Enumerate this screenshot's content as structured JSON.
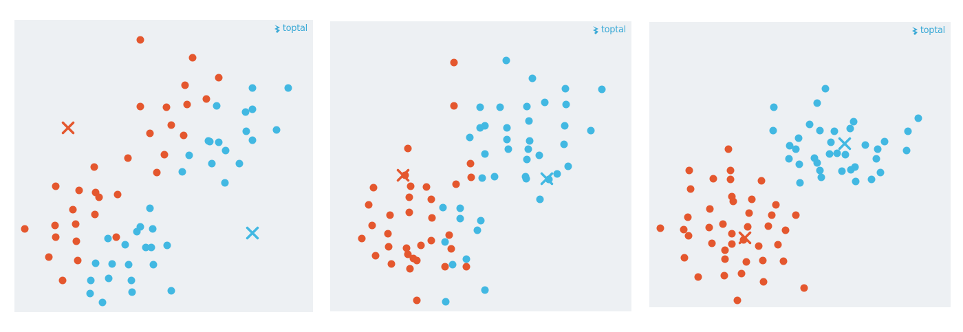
{
  "logo_text": "toptal",
  "colors": {
    "orange": "#e4572e",
    "blue": "#42b8e2",
    "panel_bg": "#edf0f3"
  },
  "chart_data": [
    {
      "type": "scatter",
      "title": "",
      "xlim": [
        0,
        434
      ],
      "ylim": [
        0,
        425
      ],
      "axes_visible": false,
      "grid": false,
      "series": [
        {
          "color": "orange",
          "points": [
            [
              183,
              396
            ],
            [
              259,
              370
            ],
            [
              297,
              341
            ],
            [
              248,
              330
            ],
            [
              183,
              299
            ],
            [
              221,
              298
            ],
            [
              251,
              302
            ],
            [
              279,
              310
            ],
            [
              228,
              272
            ],
            [
              197,
              260
            ],
            [
              246,
              257
            ],
            [
              218,
              229
            ],
            [
              116,
              211
            ],
            [
              165,
              224
            ],
            [
              207,
              203
            ],
            [
              118,
              174
            ],
            [
              60,
              183
            ],
            [
              94,
              177
            ],
            [
              123,
              167
            ],
            [
              150,
              171
            ],
            [
              85,
              149
            ],
            [
              59,
              126
            ],
            [
              117,
              142
            ],
            [
              89,
              128
            ],
            [
              15,
              121
            ],
            [
              148,
              109
            ],
            [
              90,
              103
            ],
            [
              60,
              109
            ],
            [
              50,
              80
            ],
            [
              92,
              75
            ],
            [
              70,
              46
            ]
          ]
        },
        {
          "color": "blue",
          "points": [
            [
              346,
              326
            ],
            [
              398,
              326
            ],
            [
              294,
              300
            ],
            [
              346,
              295
            ],
            [
              336,
              291
            ],
            [
              381,
              265
            ],
            [
              337,
              263
            ],
            [
              346,
              250
            ],
            [
              284,
              248
            ],
            [
              282,
              249
            ],
            [
              297,
              247
            ],
            [
              307,
              235
            ],
            [
              254,
              228
            ],
            [
              287,
              216
            ],
            [
              327,
              216
            ],
            [
              244,
              204
            ],
            [
              306,
              188
            ],
            [
              197,
              151
            ],
            [
              183,
              124
            ],
            [
              201,
              121
            ],
            [
              178,
              117
            ],
            [
              222,
              97
            ],
            [
              199,
              94
            ],
            [
              136,
              107
            ],
            [
              161,
              98
            ],
            [
              191,
              94
            ],
            [
              118,
              71
            ],
            [
              166,
              69
            ],
            [
              202,
              69
            ],
            [
              142,
              70
            ],
            [
              170,
              46
            ],
            [
              137,
              49
            ],
            [
              111,
              46
            ],
            [
              171,
              29
            ],
            [
              110,
              27
            ],
            [
              228,
              31
            ],
            [
              128,
              14
            ]
          ]
        }
      ],
      "centroids": [
        {
          "color": "orange",
          "x": 78,
          "y": 268
        },
        {
          "color": "blue",
          "x": 346,
          "y": 115
        }
      ]
    },
    {
      "type": "scatter",
      "title": "",
      "xlim": [
        0,
        438
      ],
      "ylim": [
        0,
        422
      ],
      "axes_visible": false,
      "grid": false,
      "series": [
        {
          "color": "orange",
          "points": [
            [
              180,
              362
            ],
            [
              180,
              299
            ],
            [
              113,
              237
            ],
            [
              204,
              215
            ],
            [
              205,
              195
            ],
            [
              109,
              198
            ],
            [
              140,
              181
            ],
            [
              183,
              185
            ],
            [
              63,
              180
            ],
            [
              56,
              155
            ],
            [
              117,
              182
            ],
            [
              115,
              166
            ],
            [
              147,
              163
            ],
            [
              148,
              136
            ],
            [
              115,
              144
            ],
            [
              87,
              140
            ],
            [
              61,
              125
            ],
            [
              84,
              113
            ],
            [
              147,
              103
            ],
            [
              173,
              111
            ],
            [
              46,
              106
            ],
            [
              85,
              94
            ],
            [
              111,
              92
            ],
            [
              132,
              96
            ],
            [
              176,
              91
            ],
            [
              66,
              81
            ],
            [
              113,
              83
            ],
            [
              121,
              77
            ],
            [
              126,
              74
            ],
            [
              89,
              69
            ],
            [
              116,
              62
            ],
            [
              167,
              65
            ],
            [
              198,
              65
            ],
            [
              126,
              16
            ]
          ]
        },
        {
          "color": "blue",
          "points": [
            [
              256,
              365
            ],
            [
              294,
              339
            ],
            [
              342,
              324
            ],
            [
              395,
              323
            ],
            [
              218,
              297
            ],
            [
              247,
              297
            ],
            [
              286,
              298
            ],
            [
              343,
              301
            ],
            [
              312,
              304
            ],
            [
              218,
              267
            ],
            [
              257,
              267
            ],
            [
              289,
              277
            ],
            [
              225,
              270
            ],
            [
              341,
              270
            ],
            [
              379,
              263
            ],
            [
              257,
              250
            ],
            [
              290,
              248
            ],
            [
              203,
              253
            ],
            [
              225,
              229
            ],
            [
              259,
              236
            ],
            [
              288,
              236
            ],
            [
              340,
              243
            ],
            [
              304,
              227
            ],
            [
              286,
              221
            ],
            [
              346,
              211
            ],
            [
              330,
              200
            ],
            [
              239,
              196
            ],
            [
              221,
              194
            ],
            [
              285,
              193
            ],
            [
              284,
              196
            ],
            [
              318,
              192
            ],
            [
              305,
              163
            ],
            [
              219,
              132
            ],
            [
              189,
              135
            ],
            [
              164,
              151
            ],
            [
              189,
              150
            ],
            [
              214,
              118
            ],
            [
              167,
              101
            ],
            [
              198,
              76
            ],
            [
              178,
              68
            ],
            [
              225,
              31
            ],
            [
              168,
              14
            ]
          ]
        }
      ],
      "centroids": [
        {
          "color": "orange",
          "x": 106,
          "y": 198
        },
        {
          "color": "blue",
          "x": 315,
          "y": 193
        }
      ]
    },
    {
      "type": "scatter",
      "title": "",
      "xlim": [
        0,
        438
      ],
      "ylim": [
        0,
        415
      ],
      "axes_visible": false,
      "grid": false,
      "series": [
        {
          "color": "orange",
          "points": [
            [
              128,
              10
            ],
            [
              225,
              28
            ],
            [
              71,
              44
            ],
            [
              109,
              46
            ],
            [
              134,
              49
            ],
            [
              166,
              37
            ],
            [
              165,
              68
            ],
            [
              195,
              67
            ],
            [
              51,
              72
            ],
            [
              110,
              70
            ],
            [
              141,
              66
            ],
            [
              187,
              91
            ],
            [
              91,
              93
            ],
            [
              120,
              92
            ],
            [
              159,
              89
            ],
            [
              50,
              113
            ],
            [
              16,
              115
            ],
            [
              57,
              104
            ],
            [
              137,
              98
            ],
            [
              110,
              83
            ],
            [
              120,
              107
            ],
            [
              198,
              112
            ],
            [
              143,
              117
            ],
            [
              173,
              118
            ],
            [
              87,
              116
            ],
            [
              178,
              134
            ],
            [
              213,
              134
            ],
            [
              107,
              121
            ],
            [
              56,
              131
            ],
            [
              145,
              137
            ],
            [
              88,
              143
            ],
            [
              122,
              154
            ],
            [
              184,
              149
            ],
            [
              149,
              157
            ],
            [
              120,
              161
            ],
            [
              60,
              172
            ],
            [
              93,
              187
            ],
            [
              118,
              186
            ],
            [
              58,
              199
            ],
            [
              163,
              184
            ],
            [
              118,
              199
            ],
            [
              115,
              230
            ]
          ]
        },
        {
          "color": "blue",
          "points": [
            [
              300,
              183
            ],
            [
              323,
              186
            ],
            [
              299,
              204
            ],
            [
              248,
              199
            ],
            [
              218,
              208
            ],
            [
              203,
              216
            ],
            [
              285,
              222
            ],
            [
              244,
              210
            ],
            [
              219,
              181
            ],
            [
              250,
              189
            ],
            [
              293,
              200
            ],
            [
              213,
              230
            ],
            [
              273,
              224
            ],
            [
              262,
              223
            ],
            [
              280,
              198
            ],
            [
              240,
              217
            ],
            [
              233,
              266
            ],
            [
              269,
              256
            ],
            [
              264,
              240
            ],
            [
              204,
              235
            ],
            [
              342,
              241
            ],
            [
              374,
              228
            ],
            [
              332,
              230
            ],
            [
              330,
              216
            ],
            [
              376,
              256
            ],
            [
              217,
              246
            ],
            [
              248,
              257
            ],
            [
              314,
              236
            ],
            [
              336,
              196
            ],
            [
              391,
              275
            ],
            [
              181,
              291
            ],
            [
              180,
              257
            ],
            [
              256,
              318
            ],
            [
              292,
              260
            ],
            [
              244,
              297
            ],
            [
              297,
              270
            ]
          ]
        }
      ],
      "centroids": [
        {
          "color": "orange",
          "x": 139,
          "y": 101
        },
        {
          "color": "blue",
          "x": 284,
          "y": 238
        }
      ]
    }
  ]
}
